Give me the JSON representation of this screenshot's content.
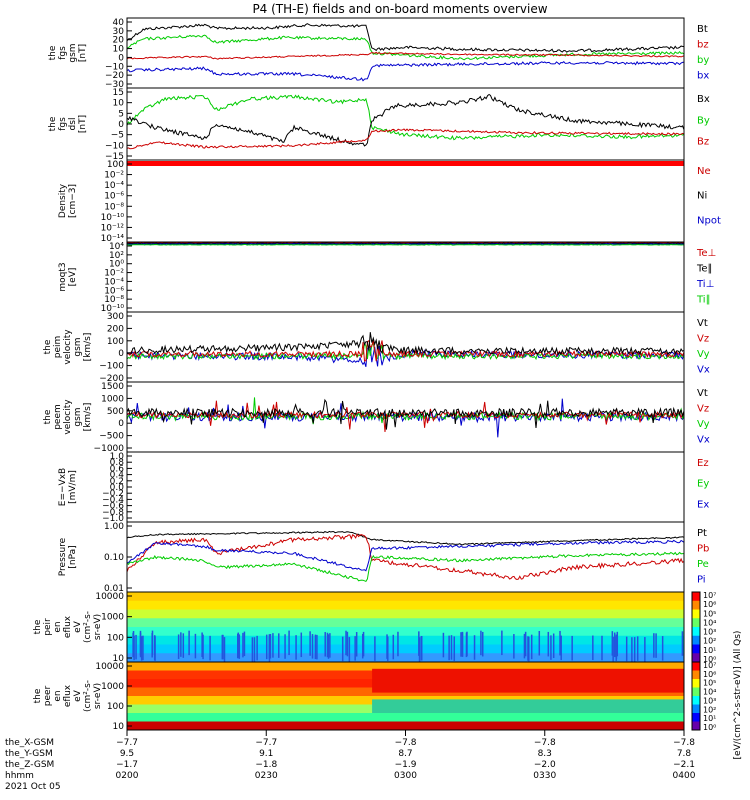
{
  "title": "P4 (TH-E) fields and on-board moments overview",
  "panels": [
    {
      "id": "fgs-gsm",
      "ylabel": [
        "the",
        "fgs",
        "gsm",
        "[nT]"
      ],
      "ticks": [
        "40",
        "30",
        "20",
        "10",
        "0",
        "−10",
        "−20",
        "−30"
      ],
      "legend": [
        {
          "label": "Bt",
          "color": "#000000"
        },
        {
          "label": "bz",
          "color": "#cc0000"
        },
        {
          "label": "by",
          "color": "#00cc00"
        },
        {
          "label": "bx",
          "color": "#0000cc"
        }
      ]
    },
    {
      "id": "fgs-dsl",
      "ylabel": [
        "the",
        "fgs",
        "dsl",
        "[nT]"
      ],
      "ticks": [
        "15",
        "10",
        "5",
        "0",
        "−5",
        "−10",
        "−15"
      ],
      "legend": [
        {
          "label": "Bx",
          "color": "#000000"
        },
        {
          "label": "By",
          "color": "#00cc00"
        },
        {
          "label": "Bz",
          "color": "#cc0000"
        }
      ]
    },
    {
      "id": "density",
      "ylabel": [
        "Density",
        "[cm−3]"
      ],
      "ticks": [
        "100",
        "10⁻²",
        "10⁻⁴",
        "10⁻⁶",
        "10⁻⁸",
        "10⁻¹⁰",
        "10⁻¹²",
        "10⁻¹⁴"
      ],
      "legend": [
        {
          "label": "Ne",
          "color": "#cc0000"
        },
        {
          "label": "Ni",
          "color": "#000000"
        },
        {
          "label": "Npot",
          "color": "#0000cc"
        }
      ]
    },
    {
      "id": "temperature",
      "ylabel": [
        "moqt3",
        "[eV]"
      ],
      "ticks": [
        "10⁴",
        "10²",
        "10⁰",
        "10⁻²",
        "10⁻⁴",
        "10⁻⁶",
        "10⁻⁸",
        "10⁻¹⁰"
      ],
      "legend": [
        {
          "label": "Te⊥",
          "color": "#cc0000"
        },
        {
          "label": "Te∥",
          "color": "#000000"
        },
        {
          "label": "Ti⊥",
          "color": "#0000cc"
        },
        {
          "label": "Ti∥",
          "color": "#00cc00"
        }
      ]
    },
    {
      "id": "peim-velocity",
      "ylabel": [
        "the",
        "peim",
        "velocity",
        "gsm",
        "[km/s]"
      ],
      "ticks": [
        "300",
        "200",
        "100",
        "0",
        "−100",
        "−200"
      ],
      "legend": [
        {
          "label": "Vt",
          "color": "#000000"
        },
        {
          "label": "Vz",
          "color": "#cc0000"
        },
        {
          "label": "Vy",
          "color": "#00cc00"
        },
        {
          "label": "Vx",
          "color": "#0000cc"
        }
      ]
    },
    {
      "id": "peem-velocity",
      "ylabel": [
        "the",
        "peem",
        "velocity",
        "gsm",
        "[km/s]"
      ],
      "ticks": [
        "1500",
        "1000",
        "500",
        "0",
        "−500",
        "−1000"
      ],
      "legend": [
        {
          "label": "Vt",
          "color": "#000000"
        },
        {
          "label": "Vz",
          "color": "#cc0000"
        },
        {
          "label": "Vy",
          "color": "#00cc00"
        },
        {
          "label": "Vx",
          "color": "#0000cc"
        }
      ]
    },
    {
      "id": "efield",
      "ylabel": [
        "E=−VxB",
        "[mV/m]"
      ],
      "ticks": [
        "1.0",
        "0.8",
        "0.6",
        "0.4",
        "0.2",
        "0.0",
        "−0.2",
        "−0.4",
        "−0.6",
        "−0.8",
        "−1.0"
      ],
      "legend": [
        {
          "label": "Ez",
          "color": "#cc0000"
        },
        {
          "label": "Ey",
          "color": "#00cc00"
        },
        {
          "label": "Ex",
          "color": "#0000cc"
        }
      ]
    },
    {
      "id": "pressure",
      "ylabel": [
        "Pressure",
        "[nPa]"
      ],
      "ticks": [
        "1.00",
        "0.10",
        "0.01"
      ],
      "legend": [
        {
          "label": "Pt",
          "color": "#000000"
        },
        {
          "label": "Pb",
          "color": "#cc0000"
        },
        {
          "label": "Pe",
          "color": "#00cc00"
        },
        {
          "label": "Pi",
          "color": "#0000cc"
        }
      ]
    },
    {
      "id": "peir-spec",
      "ylabel": [
        "the",
        "peir",
        "en",
        "eflux",
        "eV",
        "(cm²-s-",
        "sr-eV)"
      ],
      "ticks": [
        "10000",
        "1000",
        "100",
        "10"
      ],
      "cbar": [
        "10⁷",
        "10⁶",
        "10⁵",
        "10⁴",
        "10³",
        "10²",
        "10¹",
        "10⁰"
      ]
    },
    {
      "id": "peer-spec",
      "ylabel": [
        "the",
        "peer",
        "en",
        "eflux",
        "eV",
        "(cm²-s-",
        "sr-eV)"
      ],
      "ticks": [
        "10000",
        "1000",
        "100",
        "10"
      ],
      "cbar": [
        "10⁷",
        "10⁶",
        "10⁵",
        "10⁴",
        "10³",
        "10²",
        "10¹",
        "10⁰"
      ]
    }
  ],
  "cbar_label": "[eV/(cm^2-s-str-eV)] (All Qs)",
  "xaxis": {
    "row_labels": [
      "the_X-GSM",
      "the_Y-GSM",
      "the_Z-GSM",
      "hhmm",
      "2021 Oct 05"
    ],
    "ticks": [
      {
        "x": "−7.7",
        "y": "9.5",
        "z": "−1.7",
        "t": "0200"
      },
      {
        "x": "−7.7",
        "y": "9.1",
        "z": "−1.8",
        "t": "0230"
      },
      {
        "x": "−7.8",
        "y": "8.7",
        "z": "−1.9",
        "t": "0300"
      },
      {
        "x": "−7.8",
        "y": "8.3",
        "z": "−2.0",
        "t": "0330"
      },
      {
        "x": "−7.8",
        "y": "7.8",
        "z": "−2.1",
        "t": "0400"
      }
    ]
  },
  "chart_data": {
    "type": "line",
    "time_range": [
      "2021-10-05 02:00",
      "2021-10-05 04:00"
    ],
    "series_approx": {
      "fgs-gsm": {
        "Bt": [
          [
            0,
            18
          ],
          [
            0.05,
            30
          ],
          [
            0.15,
            35
          ],
          [
            0.3,
            32
          ],
          [
            0.45,
            25
          ],
          [
            0.5,
            15
          ],
          [
            0.7,
            13
          ],
          [
            1,
            14
          ]
        ],
        "by": [
          [
            0,
            12
          ],
          [
            0.15,
            20
          ],
          [
            0.3,
            18
          ],
          [
            0.45,
            15
          ],
          [
            0.5,
            4
          ],
          [
            0.7,
            2
          ],
          [
            1,
            4
          ]
        ],
        "bz": [
          [
            0,
            -2
          ],
          [
            0.15,
            -1
          ],
          [
            0.3,
            -1
          ],
          [
            0.45,
            2
          ],
          [
            0.5,
            4
          ],
          [
            0.7,
            5
          ],
          [
            1,
            3
          ]
        ],
        "bx": [
          [
            0,
            -10
          ],
          [
            0.15,
            -15
          ],
          [
            0.3,
            -12
          ],
          [
            0.45,
            -20
          ],
          [
            0.5,
            -8
          ],
          [
            0.7,
            -5
          ],
          [
            1,
            -6
          ]
        ]
      },
      "pressure": {
        "Pt": [
          [
            0,
            0.5
          ],
          [
            0.5,
            0.5
          ],
          [
            0.6,
            0.3
          ],
          [
            1,
            0.4
          ]
        ]
      }
    }
  }
}
